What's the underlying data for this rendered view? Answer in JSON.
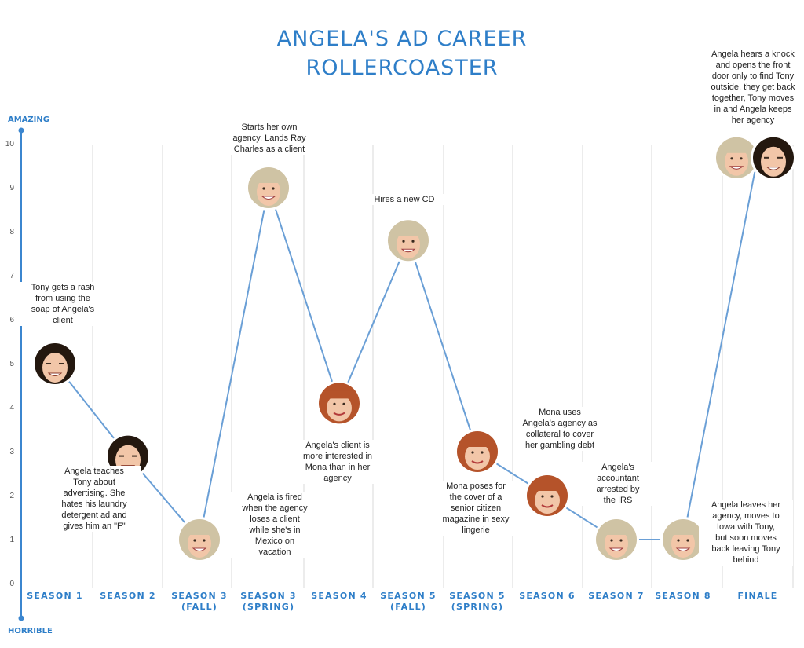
{
  "chart_data": {
    "type": "line",
    "title_lines": [
      "ANGELA'S AD CAREER",
      "ROLLERCOASTER"
    ],
    "y_top_label": "AMAZING",
    "y_bottom_label": "HORRIBLE",
    "ylim": [
      0,
      10
    ],
    "yticks": [
      "0",
      "1",
      "2",
      "3",
      "4",
      "5",
      "6",
      "7",
      "8",
      "9",
      "10"
    ],
    "categories": [
      [
        "SEASON 1"
      ],
      [
        "SEASON 2"
      ],
      [
        "SEASON 3",
        "(FALL)"
      ],
      [
        "SEASON 3",
        "(SPRING)"
      ],
      [
        "SEASON 4"
      ],
      [
        "SEASON 5",
        "(FALL)"
      ],
      [
        "SEASON 5",
        "(SPRING)"
      ],
      [
        "SEASON 6"
      ],
      [
        "SEASON 7"
      ],
      [
        "SEASON 8"
      ],
      [
        "FINALE"
      ]
    ],
    "values": [
      5,
      2.9,
      1,
      9,
      4.1,
      7.8,
      3,
      2,
      1,
      1,
      9.7
    ],
    "point_faces": [
      "tony",
      "tony",
      "angela",
      "angela",
      "mona",
      "angela",
      "mona",
      "mona",
      "angela",
      "angela",
      "angela+tony"
    ],
    "annotations": [
      {
        "point": 0,
        "lines": [
          "Tony gets a rash",
          "from using the",
          "soap of Angela's",
          "client"
        ]
      },
      {
        "point": 1,
        "lines": [
          "Angela teaches",
          "Tony about",
          "advertising.  She",
          "hates his laundry",
          "detergent ad and",
          "gives him an \"F\""
        ]
      },
      {
        "point": 3,
        "lines": [
          "Starts her own",
          "agency.  Lands Ray",
          "Charles as a client"
        ]
      },
      {
        "point": 2,
        "lines": [
          "Angela is fired",
          "when the agency",
          "loses a client",
          "while she's in",
          "Mexico on",
          "vacation"
        ]
      },
      {
        "point": 4,
        "lines": [
          "Angela's client is",
          "more interested in",
          "Mona than in her",
          "agency"
        ]
      },
      {
        "point": 5,
        "lines": [
          "Hires a new CD"
        ]
      },
      {
        "point": 6,
        "lines": [
          "Mona poses for",
          "the cover of a",
          "senior citizen",
          "magazine in sexy",
          "lingerie"
        ]
      },
      {
        "point": 7,
        "lines": [
          "Mona uses",
          "Angela's agency as",
          "collateral to cover",
          "her gambling debt"
        ]
      },
      {
        "point": 8,
        "lines": [
          "Angela's",
          "accountant",
          "arrested by",
          "the IRS"
        ]
      },
      {
        "point": 9,
        "lines": [
          "Angela leaves her",
          "agency, moves to",
          "Iowa with Tony,",
          "but soon moves",
          "back leaving Tony",
          "behind"
        ]
      },
      {
        "point": 10,
        "lines": [
          "Angela hears a knock",
          "and opens the front",
          "door only to find Tony",
          "outside, they get back",
          "together, Tony moves",
          "in and Angela keeps",
          "her agency"
        ]
      }
    ],
    "colors": {
      "title": "#2e7ec8",
      "line": "#6a9fd6",
      "axis": "#3b86cf",
      "grid": "#d9d9d9",
      "angela_hair": "#cfc3a4",
      "mona_hair": "#b5532a",
      "tony_hair": "#24180f",
      "skin": "#f2c6a8"
    },
    "grid": true
  }
}
